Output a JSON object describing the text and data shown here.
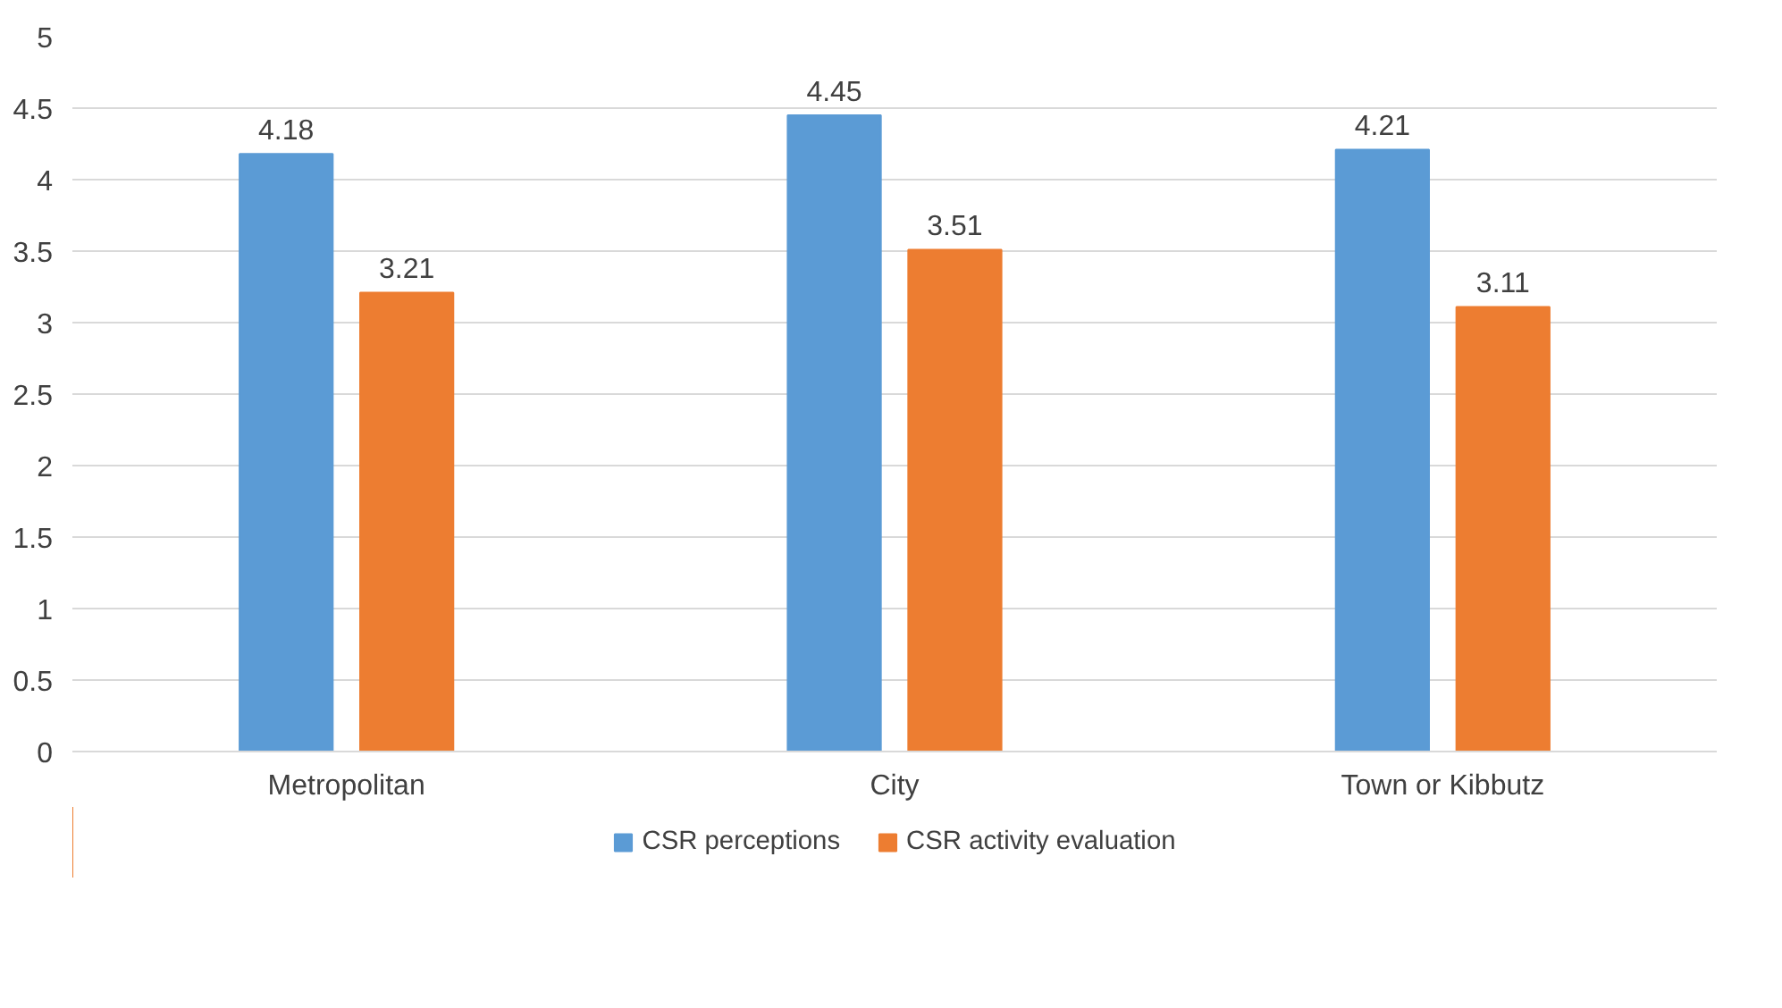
{
  "chart_data": {
    "type": "bar",
    "categories": [
      "Metropolitan",
      "City",
      "Town or Kibbutz"
    ],
    "series": [
      {
        "name": "CSR perceptions",
        "color": "#5b9bd5",
        "values": [
          4.18,
          4.45,
          4.21
        ]
      },
      {
        "name": "CSR activity evaluation",
        "color": "#ed7d31",
        "values": [
          3.21,
          3.51,
          3.11
        ]
      }
    ],
    "ylim": [
      0,
      5
    ],
    "yticks": [
      0,
      0.5,
      1,
      1.5,
      2,
      2.5,
      3,
      3.5,
      4,
      4.5,
      5
    ],
    "grid": "y",
    "legend": "bottom",
    "data_labels": true
  }
}
